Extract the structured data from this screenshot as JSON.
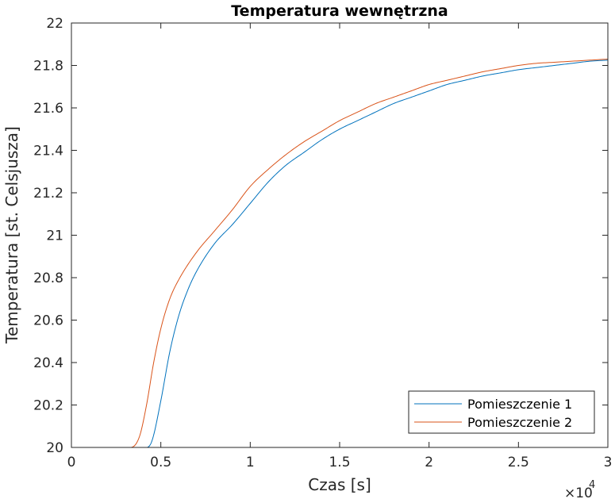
{
  "chart_data": {
    "type": "line",
    "title": "Temperatura wewnętrzna",
    "xlabel": "Czas [s]",
    "ylabel": "Temperatura [st. Celsjusza]",
    "x_exponent_label": "×10",
    "x_exponent_power": "4",
    "xlim": [
      0,
      30000
    ],
    "ylim": [
      20,
      22
    ],
    "x_ticks": [
      0,
      5000,
      10000,
      15000,
      20000,
      25000,
      30000
    ],
    "x_tick_labels": [
      "0",
      "0.5",
      "1",
      "1.5",
      "2",
      "2.5",
      "3"
    ],
    "y_ticks": [
      20,
      20.2,
      20.4,
      20.6,
      20.8,
      21,
      21.2,
      21.4,
      21.6,
      21.8,
      22
    ],
    "y_tick_labels": [
      "20",
      "20.2",
      "20.4",
      "20.6",
      "20.8",
      "21",
      "21.2",
      "21.4",
      "21.6",
      "21.8",
      "22"
    ],
    "grid": false,
    "legend_position": "bottom-right",
    "series": [
      {
        "name": "Pomieszczenie 1",
        "color": "#0072BD",
        "x": [
          0,
          3000,
          4200,
          4500,
          5000,
          5500,
          6000,
          6500,
          7000,
          8000,
          9000,
          10000,
          11000,
          12000,
          13000,
          14000,
          15000,
          16000,
          17000,
          18000,
          19000,
          20000,
          21000,
          22000,
          23000,
          24000,
          25000,
          26000,
          27000,
          28000,
          29000,
          30000
        ],
        "y": [
          20,
          20,
          20,
          20.03,
          20.22,
          20.45,
          20.62,
          20.74,
          20.83,
          20.96,
          21.05,
          21.15,
          21.25,
          21.33,
          21.39,
          21.45,
          21.5,
          21.54,
          21.58,
          21.62,
          21.65,
          21.68,
          21.71,
          21.73,
          21.75,
          21.765,
          21.78,
          21.79,
          21.8,
          21.81,
          21.82,
          21.825
        ]
      },
      {
        "name": "Pomieszczenie 2",
        "color": "#D95319",
        "x": [
          0,
          3000,
          3300,
          3800,
          4200,
          4600,
          5000,
          5500,
          6000,
          7000,
          8000,
          9000,
          10000,
          11000,
          12000,
          13000,
          14000,
          15000,
          16000,
          17000,
          18000,
          19000,
          20000,
          21000,
          22000,
          23000,
          24000,
          25000,
          26000,
          27000,
          28000,
          29000,
          30000
        ],
        "y": [
          20,
          20,
          20,
          20.05,
          20.2,
          20.4,
          20.56,
          20.7,
          20.79,
          20.92,
          21.02,
          21.12,
          21.23,
          21.31,
          21.38,
          21.44,
          21.49,
          21.54,
          21.58,
          21.62,
          21.65,
          21.68,
          21.71,
          21.73,
          21.75,
          21.77,
          21.785,
          21.8,
          21.81,
          21.815,
          21.82,
          21.825,
          21.83
        ]
      }
    ]
  }
}
